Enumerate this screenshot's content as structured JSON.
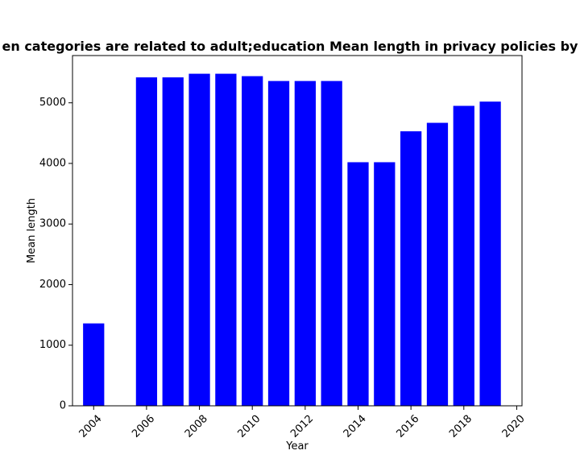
{
  "chart_data": {
    "type": "bar",
    "title": "en categories are related to adult;education Mean length in privacy policies by",
    "xlabel": "Year",
    "ylabel": "Mean length",
    "x": [
      2004,
      2006,
      2007,
      2008,
      2009,
      2010,
      2011,
      2012,
      2013,
      2014,
      2015,
      2016,
      2017,
      2018,
      2019
    ],
    "values": [
      1360,
      5420,
      5420,
      5480,
      5480,
      5440,
      5360,
      5360,
      5360,
      4020,
      4020,
      4530,
      4670,
      4950,
      5020
    ],
    "xlim": [
      2003.2,
      2020.2
    ],
    "ylim": [
      0,
      5780
    ],
    "x_ticks": [
      2004,
      2006,
      2008,
      2010,
      2012,
      2014,
      2016,
      2018,
      2020
    ],
    "y_ticks": [
      0,
      1000,
      2000,
      3000,
      4000,
      5000
    ],
    "x_tick_rotation": "45 degrees",
    "bar_color": "#0000ff",
    "grid": false,
    "legend": "none"
  }
}
